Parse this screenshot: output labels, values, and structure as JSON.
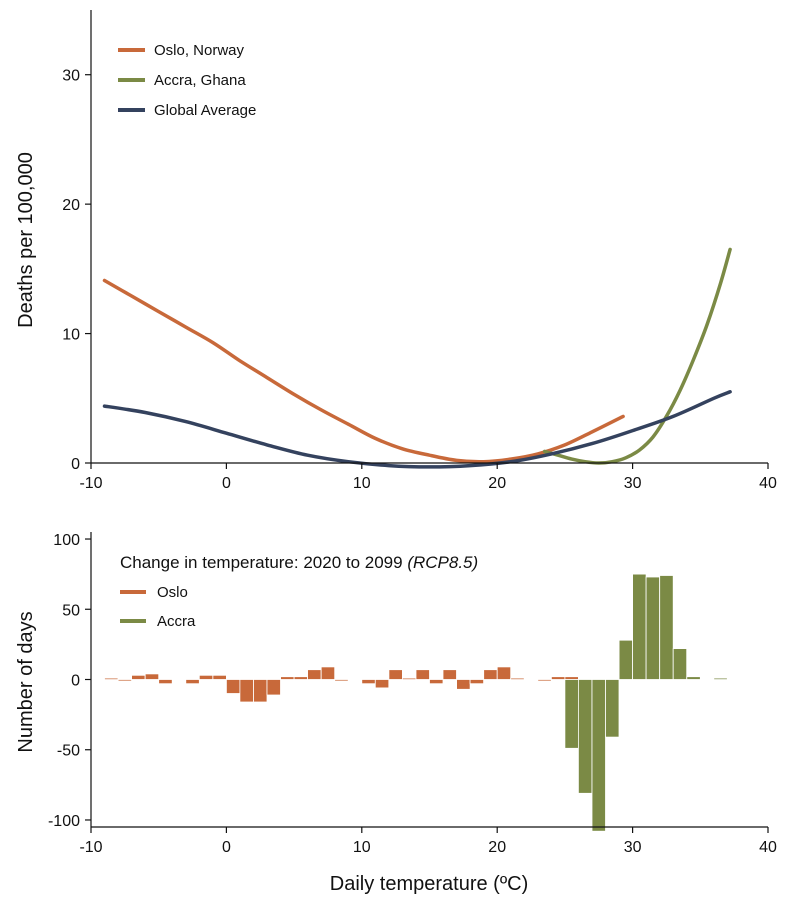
{
  "chart_data": [
    {
      "type": "line",
      "xlabel": "",
      "ylabel": "Deaths per 100,000",
      "xlim": [
        -10,
        40
      ],
      "ylim": [
        0,
        35
      ],
      "xticks": [
        -10,
        0,
        10,
        20,
        30,
        40
      ],
      "yticks": [
        0,
        10,
        20,
        30
      ],
      "grid": false,
      "legend_position": "top-left",
      "series": [
        {
          "name": "Oslo, Norway",
          "color": "#c8693a",
          "x": [
            -9,
            -7,
            -5,
            -3,
            -1,
            1,
            3,
            5,
            7,
            9,
            11,
            13,
            15,
            17,
            19,
            21,
            23,
            25,
            27,
            29.3
          ],
          "y": [
            14.1,
            12.9,
            11.7,
            10.5,
            9.3,
            7.9,
            6.6,
            5.3,
            4.1,
            3.0,
            1.9,
            1.1,
            0.6,
            0.2,
            0.1,
            0.3,
            0.7,
            1.4,
            2.4,
            3.6
          ]
        },
        {
          "name": "Accra, Ghana",
          "color": "#7b8a45",
          "x": [
            23.5,
            24.5,
            25.5,
            26.5,
            27.5,
            28.5,
            29.5,
            30.5,
            31.5,
            32.5,
            33.5,
            34.5,
            35.5,
            36.5,
            37.2
          ],
          "y": [
            0.9,
            0.6,
            0.3,
            0.1,
            0.0,
            0.1,
            0.4,
            1.0,
            2.0,
            3.6,
            5.6,
            8.0,
            10.7,
            13.9,
            16.5
          ]
        },
        {
          "name": "Global Average",
          "color": "#34425e",
          "x": [
            -9,
            -6,
            -3,
            0,
            3,
            6,
            9,
            12,
            15,
            18,
            21,
            24,
            27,
            30,
            33,
            36,
            37.2
          ],
          "y": [
            4.4,
            3.9,
            3.2,
            2.3,
            1.4,
            0.6,
            0.1,
            -0.2,
            -0.3,
            -0.2,
            0.1,
            0.7,
            1.5,
            2.5,
            3.6,
            5.0,
            5.5
          ]
        }
      ]
    },
    {
      "type": "bar",
      "title": "Change in temperature: 2020 to 2099 ",
      "title_italic": "(RCP8.5)",
      "xlabel": "Daily temperature (ºC)",
      "ylabel": "Number of days",
      "xlim": [
        -10,
        40
      ],
      "ylim": [
        -105,
        105
      ],
      "xticks": [
        -10,
        0,
        10,
        20,
        30,
        40
      ],
      "yticks": [
        -100,
        -50,
        0,
        50,
        100
      ],
      "grid": false,
      "legend_position": "top-left",
      "bar_width": 1,
      "series": [
        {
          "name": "Oslo",
          "color": "#c8693a",
          "x": [
            -8.5,
            -7.5,
            -6.5,
            -5.5,
            -4.5,
            -2.5,
            -1.5,
            -0.5,
            0.5,
            1.5,
            2.5,
            3.5,
            4.5,
            5.5,
            6.5,
            7.5,
            8.5,
            10.5,
            11.5,
            12.5,
            13.5,
            14.5,
            15.5,
            16.5,
            17.5,
            18.5,
            19.5,
            20.5,
            21.5,
            23.5,
            24.5,
            25.5
          ],
          "values": [
            1,
            -1,
            3,
            4,
            -3,
            -3,
            3,
            3,
            -10,
            -16,
            -16,
            -11,
            2,
            2,
            7,
            9,
            -1,
            -3,
            -6,
            7,
            1,
            7,
            -3,
            7,
            -7,
            -3,
            7,
            9,
            1,
            -1,
            2,
            2
          ]
        },
        {
          "name": "Accra",
          "color": "#7b8a45",
          "x": [
            25.5,
            26.5,
            27.5,
            28.5,
            29.5,
            30.5,
            31.5,
            32.5,
            33.5,
            34.5,
            36.5
          ],
          "values": [
            -49,
            -81,
            -108,
            -41,
            28,
            75,
            73,
            74,
            22,
            2,
            1
          ]
        }
      ]
    }
  ]
}
